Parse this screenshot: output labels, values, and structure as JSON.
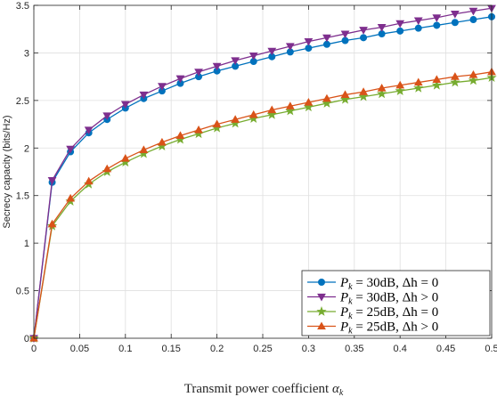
{
  "chart_data": {
    "type": "line",
    "title": "",
    "xlabel": "Transmit power coefficient α_k",
    "ylabel": "Secrecy capacity (bits/Hz)",
    "xlim": [
      0,
      0.5
    ],
    "ylim": [
      0,
      3.5
    ],
    "xticks": [
      0,
      0.05,
      0.1,
      0.15,
      0.2,
      0.25,
      0.3,
      0.35,
      0.4,
      0.45,
      0.5
    ],
    "xtick_labels": [
      "0",
      "0.05",
      "0.1",
      "0.15",
      "0.2",
      "0.25",
      "0.3",
      "0.35",
      "0.4",
      "0.45",
      "0.5"
    ],
    "yticks": [
      0,
      0.5,
      1,
      1.5,
      2,
      2.5,
      3,
      3.5
    ],
    "ytick_labels": [
      "0",
      "0.5",
      "1",
      "1.5",
      "2",
      "2.5",
      "3",
      "3.5"
    ],
    "grid": true,
    "legend_position": "bottom-right",
    "x": [
      0,
      0.02,
      0.04,
      0.06,
      0.08,
      0.1,
      0.12,
      0.14,
      0.16,
      0.18,
      0.2,
      0.22,
      0.24,
      0.26,
      0.28,
      0.3,
      0.32,
      0.34,
      0.36,
      0.38,
      0.4,
      0.42,
      0.44,
      0.46,
      0.48,
      0.5
    ],
    "series": [
      {
        "name": "P_k = 30dB, Δh = 0",
        "color": "#0072BD",
        "marker": "circle",
        "values": [
          0,
          1.64,
          1.96,
          2.16,
          2.3,
          2.42,
          2.52,
          2.6,
          2.68,
          2.75,
          2.81,
          2.86,
          2.91,
          2.96,
          3.01,
          3.05,
          3.09,
          3.13,
          3.16,
          3.2,
          3.23,
          3.26,
          3.29,
          3.32,
          3.35,
          3.38
        ]
      },
      {
        "name": "P_k = 30dB, Δh > 0",
        "color": "#7E2F8E",
        "marker": "triangle-down",
        "values": [
          0,
          1.66,
          1.99,
          2.19,
          2.34,
          2.46,
          2.56,
          2.65,
          2.73,
          2.8,
          2.86,
          2.92,
          2.97,
          3.02,
          3.07,
          3.12,
          3.16,
          3.2,
          3.24,
          3.27,
          3.31,
          3.34,
          3.37,
          3.41,
          3.44,
          3.47
        ]
      },
      {
        "name": "P_k = 25dB, Δh = 0",
        "color": "#77AC30",
        "marker": "star",
        "values": [
          0,
          1.18,
          1.44,
          1.62,
          1.75,
          1.85,
          1.94,
          2.02,
          2.09,
          2.15,
          2.21,
          2.26,
          2.31,
          2.35,
          2.39,
          2.43,
          2.47,
          2.51,
          2.54,
          2.57,
          2.6,
          2.63,
          2.66,
          2.69,
          2.71,
          2.74
        ]
      },
      {
        "name": "P_k = 25dB, Δh > 0",
        "color": "#D95319",
        "marker": "triangle-up",
        "values": [
          0,
          1.2,
          1.47,
          1.65,
          1.78,
          1.89,
          1.98,
          2.06,
          2.13,
          2.19,
          2.25,
          2.3,
          2.35,
          2.4,
          2.44,
          2.48,
          2.52,
          2.56,
          2.59,
          2.63,
          2.66,
          2.69,
          2.72,
          2.75,
          2.77,
          2.8
        ]
      }
    ]
  },
  "axis_text": {
    "xlabel_main": "Transmit power coefficient ",
    "xlabel_sym": "α",
    "xlabel_sub": "k"
  },
  "legend": {
    "items": [
      {
        "p": "P",
        "sub": "k",
        "rest": " = 30dB, Δh = 0"
      },
      {
        "p": "P",
        "sub": "k",
        "rest": " = 30dB, Δh > 0"
      },
      {
        "p": "P",
        "sub": "k",
        "rest": " = 25dB, Δh = 0"
      },
      {
        "p": "P",
        "sub": "k",
        "rest": " = 25dB, Δh > 0"
      }
    ]
  }
}
